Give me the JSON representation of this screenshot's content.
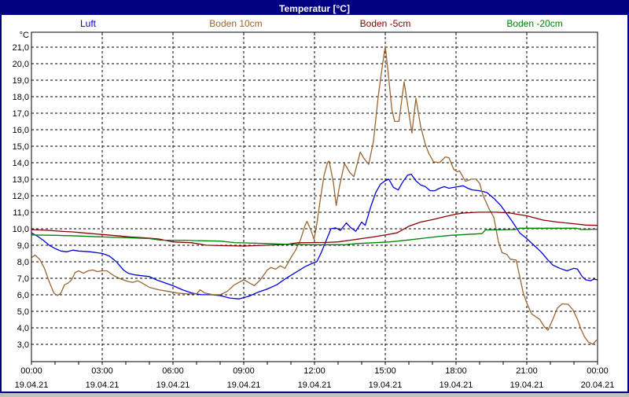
{
  "window": {
    "title": "Temperatur [°C]"
  },
  "colors": {
    "titlebar": "#000080",
    "titlebar_text": "#ffffff",
    "window_border": "#000080",
    "background": "#ffffff",
    "plot_border": "#000000",
    "gridline": "#000000",
    "axis_text": "#000000"
  },
  "legend": {
    "items": [
      {
        "label": "Luft",
        "color": "#0000dd"
      },
      {
        "label": "Boden 10cm",
        "color": "#996633"
      },
      {
        "label": "Boden -5cm",
        "color": "#8b0000"
      },
      {
        "label": "Boden -20cm",
        "color": "#008000"
      }
    ]
  },
  "axes": {
    "y_unit_label": "°C",
    "y_tick_labels": [
      "21,0",
      "20,0",
      "19,0",
      "18,0",
      "17,0",
      "16,0",
      "15,0",
      "14,0",
      "13,0",
      "12,0",
      "11,0",
      "10,0",
      "9,0",
      "8,0",
      "7,0",
      "6,0",
      "5,0",
      "4,0",
      "3,0"
    ],
    "y_tick_values": [
      21,
      20,
      19,
      18,
      17,
      16,
      15,
      14,
      13,
      12,
      11,
      10,
      9,
      8,
      7,
      6,
      5,
      4,
      3
    ],
    "x_ticks": [
      {
        "hour": 0,
        "time": "00:00",
        "date": "19.04.21"
      },
      {
        "hour": 3,
        "time": "03:00",
        "date": "19.04.21"
      },
      {
        "hour": 6,
        "time": "06:00",
        "date": "19.04.21"
      },
      {
        "hour": 9,
        "time": "09:00",
        "date": "19.04.21"
      },
      {
        "hour": 12,
        "time": "12:00",
        "date": "19.04.21"
      },
      {
        "hour": 15,
        "time": "15:00",
        "date": "19.04.21"
      },
      {
        "hour": 18,
        "time": "18:00",
        "date": "19.04.21"
      },
      {
        "hour": 21,
        "time": "21:00",
        "date": "19.04.21"
      },
      {
        "hour": 24,
        "time": "00:00",
        "date": "20.04.21"
      }
    ],
    "x_gridline_hours": [
      3,
      6,
      9,
      12,
      15,
      18,
      21
    ],
    "x_minor_tick_step_hours": 1
  },
  "chart_data": {
    "type": "line",
    "title": "Temperatur [°C]",
    "x_unit": "time of day (hours)",
    "y_unit": "°C",
    "xlim": [
      0,
      24
    ],
    "ylim": [
      1.95,
      21.9
    ],
    "grid": true,
    "legend_position": "top",
    "series": [
      {
        "name": "Luft",
        "color": "#0000dd",
        "points": [
          [
            0,
            9.75
          ],
          [
            0.25,
            9.55
          ],
          [
            0.5,
            9.3
          ],
          [
            0.75,
            9.0
          ],
          [
            1.0,
            8.8
          ],
          [
            1.25,
            8.65
          ],
          [
            1.5,
            8.6
          ],
          [
            1.75,
            8.7
          ],
          [
            2.0,
            8.65
          ],
          [
            2.5,
            8.6
          ],
          [
            3.0,
            8.5
          ],
          [
            3.3,
            8.35
          ],
          [
            3.6,
            8.0
          ],
          [
            3.9,
            7.5
          ],
          [
            4.1,
            7.3
          ],
          [
            4.4,
            7.2
          ],
          [
            4.7,
            7.15
          ],
          [
            5.0,
            7.1
          ],
          [
            5.3,
            6.9
          ],
          [
            5.7,
            6.7
          ],
          [
            6.0,
            6.55
          ],
          [
            6.4,
            6.3
          ],
          [
            6.8,
            6.1
          ],
          [
            7.2,
            6.0
          ],
          [
            7.6,
            6.0
          ],
          [
            8.0,
            5.95
          ],
          [
            8.4,
            5.8
          ],
          [
            8.8,
            5.75
          ],
          [
            9.2,
            5.9
          ],
          [
            9.6,
            6.15
          ],
          [
            10.0,
            6.35
          ],
          [
            10.4,
            6.6
          ],
          [
            10.8,
            7.0
          ],
          [
            11.2,
            7.35
          ],
          [
            11.6,
            7.7
          ],
          [
            11.9,
            7.9
          ],
          [
            12.1,
            8.0
          ],
          [
            12.3,
            8.6
          ],
          [
            12.5,
            9.3
          ],
          [
            12.7,
            10.0
          ],
          [
            12.9,
            10.05
          ],
          [
            13.1,
            9.9
          ],
          [
            13.35,
            10.35
          ],
          [
            13.55,
            10.05
          ],
          [
            13.75,
            9.85
          ],
          [
            14.0,
            10.4
          ],
          [
            14.15,
            10.2
          ],
          [
            14.4,
            11.4
          ],
          [
            14.6,
            12.2
          ],
          [
            14.8,
            12.7
          ],
          [
            15.0,
            12.9
          ],
          [
            15.15,
            13.0
          ],
          [
            15.35,
            12.5
          ],
          [
            15.55,
            12.35
          ],
          [
            15.75,
            12.85
          ],
          [
            15.95,
            13.25
          ],
          [
            16.1,
            13.3
          ],
          [
            16.3,
            12.9
          ],
          [
            16.5,
            12.65
          ],
          [
            16.7,
            12.55
          ],
          [
            16.9,
            12.3
          ],
          [
            17.1,
            12.3
          ],
          [
            17.3,
            12.45
          ],
          [
            17.5,
            12.55
          ],
          [
            17.7,
            12.45
          ],
          [
            17.9,
            12.5
          ],
          [
            18.1,
            12.55
          ],
          [
            18.3,
            12.6
          ],
          [
            18.5,
            12.45
          ],
          [
            18.7,
            12.35
          ],
          [
            19.0,
            12.3
          ],
          [
            19.3,
            12.2
          ],
          [
            19.6,
            11.85
          ],
          [
            19.9,
            11.4
          ],
          [
            20.1,
            11.0
          ],
          [
            20.4,
            10.4
          ],
          [
            20.7,
            9.75
          ],
          [
            21.0,
            9.4
          ],
          [
            21.3,
            9.0
          ],
          [
            21.6,
            8.6
          ],
          [
            21.9,
            8.1
          ],
          [
            22.1,
            7.8
          ],
          [
            22.4,
            7.6
          ],
          [
            22.7,
            7.45
          ],
          [
            23.0,
            7.6
          ],
          [
            23.15,
            7.55
          ],
          [
            23.35,
            7.1
          ],
          [
            23.5,
            6.9
          ],
          [
            23.7,
            6.85
          ],
          [
            23.85,
            6.95
          ],
          [
            24,
            6.9
          ]
        ]
      },
      {
        "name": "Boden 10cm",
        "color": "#996633",
        "points": [
          [
            0,
            8.25
          ],
          [
            0.15,
            8.4
          ],
          [
            0.35,
            8.15
          ],
          [
            0.55,
            7.6
          ],
          [
            0.75,
            6.8
          ],
          [
            0.95,
            6.1
          ],
          [
            1.1,
            5.95
          ],
          [
            1.25,
            6.1
          ],
          [
            1.4,
            6.6
          ],
          [
            1.55,
            6.7
          ],
          [
            1.7,
            6.9
          ],
          [
            1.85,
            7.35
          ],
          [
            2.0,
            7.45
          ],
          [
            2.2,
            7.3
          ],
          [
            2.4,
            7.45
          ],
          [
            2.6,
            7.5
          ],
          [
            2.8,
            7.4
          ],
          [
            3.0,
            7.45
          ],
          [
            3.2,
            7.45
          ],
          [
            3.5,
            7.15
          ],
          [
            3.8,
            6.95
          ],
          [
            4.1,
            6.8
          ],
          [
            4.3,
            6.75
          ],
          [
            4.5,
            6.85
          ],
          [
            4.7,
            6.7
          ],
          [
            5.0,
            6.45
          ],
          [
            5.4,
            6.3
          ],
          [
            5.8,
            6.2
          ],
          [
            6.2,
            6.1
          ],
          [
            6.6,
            6.05
          ],
          [
            7.0,
            6.05
          ],
          [
            7.15,
            6.3
          ],
          [
            7.35,
            6.1
          ],
          [
            7.7,
            6.0
          ],
          [
            8.0,
            6.0
          ],
          [
            8.3,
            6.2
          ],
          [
            8.6,
            6.6
          ],
          [
            9.0,
            6.9
          ],
          [
            9.2,
            6.75
          ],
          [
            9.45,
            6.55
          ],
          [
            9.7,
            6.9
          ],
          [
            10.0,
            7.5
          ],
          [
            10.15,
            7.65
          ],
          [
            10.35,
            7.55
          ],
          [
            10.55,
            7.75
          ],
          [
            10.75,
            7.6
          ],
          [
            11.0,
            8.25
          ],
          [
            11.2,
            8.7
          ],
          [
            11.4,
            9.3
          ],
          [
            11.6,
            10.2
          ],
          [
            11.68,
            10.45
          ],
          [
            11.85,
            9.9
          ],
          [
            11.98,
            9.35
          ],
          [
            12.1,
            10.3
          ],
          [
            12.25,
            11.8
          ],
          [
            12.4,
            13.2
          ],
          [
            12.55,
            14.0
          ],
          [
            12.62,
            14.1
          ],
          [
            12.8,
            12.8
          ],
          [
            12.92,
            11.4
          ],
          [
            13.05,
            12.5
          ],
          [
            13.27,
            13.95
          ],
          [
            13.5,
            13.4
          ],
          [
            13.67,
            13.15
          ],
          [
            13.94,
            14.65
          ],
          [
            14.1,
            14.25
          ],
          [
            14.3,
            13.9
          ],
          [
            14.5,
            15.3
          ],
          [
            14.7,
            18.0
          ],
          [
            14.87,
            19.8
          ],
          [
            15.0,
            21.05
          ],
          [
            15.12,
            19.5
          ],
          [
            15.28,
            17.2
          ],
          [
            15.4,
            16.5
          ],
          [
            15.58,
            16.5
          ],
          [
            15.8,
            18.9
          ],
          [
            15.97,
            17.3
          ],
          [
            16.13,
            15.8
          ],
          [
            16.3,
            17.9
          ],
          [
            16.5,
            16.2
          ],
          [
            16.7,
            15.1
          ],
          [
            16.85,
            14.55
          ],
          [
            17.05,
            14.05
          ],
          [
            17.3,
            14.0
          ],
          [
            17.55,
            14.35
          ],
          [
            17.7,
            14.3
          ],
          [
            17.9,
            13.6
          ],
          [
            18.05,
            13.45
          ],
          [
            18.15,
            13.5
          ],
          [
            18.4,
            12.87
          ],
          [
            18.65,
            13.0
          ],
          [
            18.85,
            13.0
          ],
          [
            19.0,
            12.75
          ],
          [
            19.15,
            12.0
          ],
          [
            19.4,
            11.2
          ],
          [
            19.6,
            10.7
          ],
          [
            19.8,
            9.2
          ],
          [
            19.95,
            8.55
          ],
          [
            20.15,
            8.45
          ],
          [
            20.3,
            8.15
          ],
          [
            20.55,
            8.1
          ],
          [
            20.7,
            7.1
          ],
          [
            20.85,
            6.1
          ],
          [
            21.0,
            5.5
          ],
          [
            21.2,
            4.85
          ],
          [
            21.4,
            4.65
          ],
          [
            21.55,
            4.5
          ],
          [
            21.75,
            4.05
          ],
          [
            21.9,
            3.85
          ],
          [
            22.1,
            4.5
          ],
          [
            22.3,
            5.2
          ],
          [
            22.5,
            5.45
          ],
          [
            22.75,
            5.42
          ],
          [
            22.95,
            5.1
          ],
          [
            23.15,
            4.5
          ],
          [
            23.3,
            3.9
          ],
          [
            23.45,
            3.45
          ],
          [
            23.6,
            3.15
          ],
          [
            23.8,
            3.0
          ],
          [
            23.95,
            3.25
          ]
        ]
      },
      {
        "name": "Boden -5cm",
        "color": "#8b0000",
        "points": [
          [
            0,
            9.95
          ],
          [
            0.7,
            9.9
          ],
          [
            1.2,
            9.85
          ],
          [
            1.8,
            9.8
          ],
          [
            2.4,
            9.72
          ],
          [
            3.0,
            9.65
          ],
          [
            3.6,
            9.58
          ],
          [
            4.2,
            9.5
          ],
          [
            4.8,
            9.45
          ],
          [
            5.4,
            9.38
          ],
          [
            6.0,
            9.2
          ],
          [
            6.8,
            9.15
          ],
          [
            7.4,
            9.0
          ],
          [
            8.0,
            8.98
          ],
          [
            9.0,
            8.95
          ],
          [
            10.0,
            9.0
          ],
          [
            10.8,
            9.05
          ],
          [
            11.3,
            9.15
          ],
          [
            12.5,
            9.17
          ],
          [
            13.0,
            9.2
          ],
          [
            13.5,
            9.3
          ],
          [
            14.0,
            9.4
          ],
          [
            14.5,
            9.5
          ],
          [
            15.0,
            9.62
          ],
          [
            15.5,
            9.75
          ],
          [
            16.0,
            10.15
          ],
          [
            16.5,
            10.4
          ],
          [
            17.0,
            10.55
          ],
          [
            17.5,
            10.72
          ],
          [
            18.0,
            10.88
          ],
          [
            18.3,
            10.95
          ],
          [
            19.0,
            11.0
          ],
          [
            19.7,
            11.0
          ],
          [
            20.3,
            10.95
          ],
          [
            20.7,
            10.85
          ],
          [
            21.0,
            10.78
          ],
          [
            21.7,
            10.52
          ],
          [
            22.3,
            10.4
          ],
          [
            23.0,
            10.3
          ],
          [
            23.5,
            10.22
          ],
          [
            24,
            10.2
          ]
        ]
      },
      {
        "name": "Boden -20cm",
        "color": "#008000",
        "points": [
          [
            0,
            9.62
          ],
          [
            1.0,
            9.6
          ],
          [
            2.0,
            9.56
          ],
          [
            3.0,
            9.5
          ],
          [
            4.0,
            9.46
          ],
          [
            5.0,
            9.4
          ],
          [
            5.5,
            9.3
          ],
          [
            6.5,
            9.3
          ],
          [
            7.0,
            9.28
          ],
          [
            8.0,
            9.25
          ],
          [
            8.6,
            9.16
          ],
          [
            10.0,
            9.1
          ],
          [
            11.0,
            9.05
          ],
          [
            12.0,
            9.03
          ],
          [
            13.3,
            9.03
          ],
          [
            13.8,
            9.1
          ],
          [
            14.5,
            9.15
          ],
          [
            15.2,
            9.2
          ],
          [
            16.0,
            9.32
          ],
          [
            16.6,
            9.42
          ],
          [
            17.2,
            9.52
          ],
          [
            17.8,
            9.6
          ],
          [
            18.4,
            9.65
          ],
          [
            19.1,
            9.7
          ],
          [
            19.25,
            9.93
          ],
          [
            20.5,
            9.95
          ],
          [
            20.7,
            10.03
          ],
          [
            23.1,
            10.03
          ],
          [
            23.3,
            9.95
          ],
          [
            24,
            9.97
          ]
        ]
      }
    ]
  }
}
